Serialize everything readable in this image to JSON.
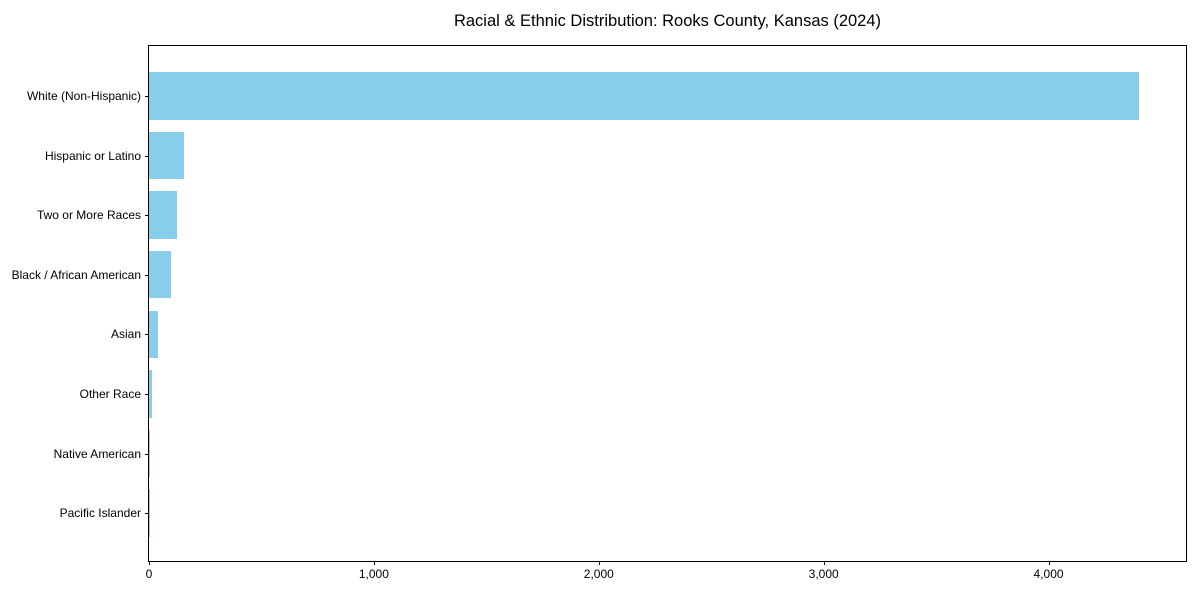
{
  "chart_data": {
    "type": "bar",
    "orientation": "horizontal",
    "title": "Racial & Ethnic Distribution: Rooks County, Kansas (2024)",
    "categories": [
      "White (Non-Hispanic)",
      "Hispanic or Latino",
      "Two or More Races",
      "Black / African American",
      "Asian",
      "Other Race",
      "Native American",
      "Pacific Islander"
    ],
    "values": [
      4400,
      155,
      125,
      100,
      40,
      15,
      4,
      1
    ],
    "bar_color": "#87CEEB",
    "spine_color": "#000000",
    "text_color": "#000000",
    "xlabel": "",
    "ylabel": "",
    "xlim": [
      0,
      4620
    ],
    "xticks": [
      0,
      1000,
      2000,
      3000,
      4000
    ],
    "xtick_labels": [
      "0",
      "1,000",
      "2,000",
      "3,000",
      "4,000"
    ],
    "grid": false,
    "legend": null
  }
}
